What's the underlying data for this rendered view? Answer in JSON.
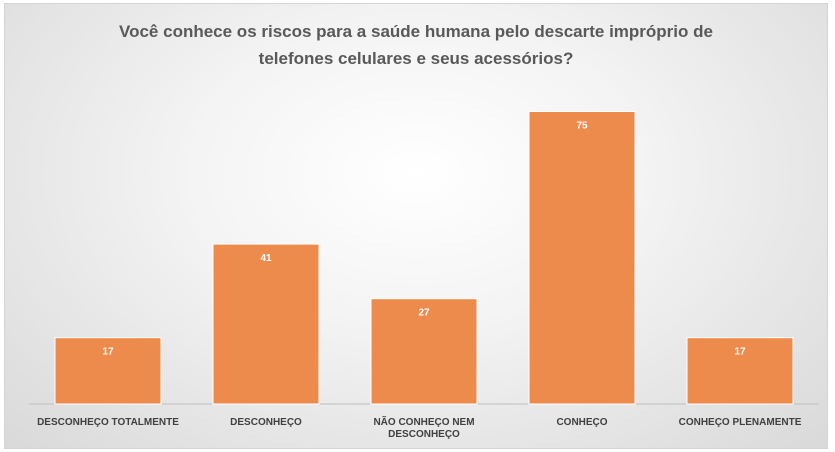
{
  "chart_data": {
    "type": "bar",
    "title_lines": [
      "Você conhece os riscos para a saúde humana pelo descarte impróprio de",
      "telefones celulares e seus acessórios?"
    ],
    "categories": [
      [
        "DESCONHEÇO TOTALMENTE"
      ],
      [
        "DESCONHEÇO"
      ],
      [
        "NÃO CONHEÇO NEM",
        "DESCONHEÇO"
      ],
      [
        "CONHEÇO"
      ],
      [
        "CONHEÇO PLENAMENTE"
      ]
    ],
    "values": [
      17,
      41,
      27,
      75,
      17
    ],
    "ylim": [
      0,
      80
    ],
    "grid": false,
    "legend": "none",
    "colors": {
      "bar": "#ED8B4D",
      "bar_border": "#ffffff",
      "axis": "#bfbfbf",
      "label": "#ffffff",
      "category": "#404040",
      "title": "#595959"
    }
  }
}
